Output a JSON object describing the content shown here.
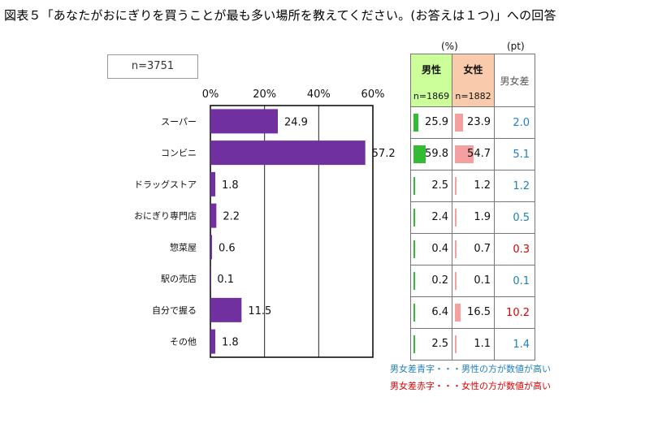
{
  "title": "図表５「あなたがおにぎりを買うことが最も多い場所を教えてください。(お答えは１つ)」への回答",
  "n_label": "n=3751",
  "chart_data": {
    "type": "bar",
    "orientation": "horizontal",
    "title": "図表５「あなたがおにぎりを買うことが最も多い場所を教えてください。(お答えは１つ)」への回答",
    "categories": [
      "スーパー",
      "コンビニ",
      "ドラッグストア",
      "おにぎり専門店",
      "惣菜屋",
      "駅の売店",
      "自分で握る",
      "その他"
    ],
    "values": [
      24.9,
      57.2,
      1.8,
      2.2,
      0.6,
      0.1,
      11.5,
      1.8
    ],
    "value_labels": [
      "24.9",
      "57.2",
      "1.8",
      "2.2",
      "0.6",
      "0.1",
      "11.5",
      "1.8"
    ],
    "xlim": [
      0,
      60
    ],
    "xticks": [
      0,
      20,
      40,
      60
    ],
    "xtick_labels": [
      "0%",
      "20%",
      "40%",
      "60%"
    ],
    "bar_color": "#7030A0",
    "grid": true
  },
  "gender_table": {
    "pct_unit": "(%)",
    "pt_unit": "(pt)",
    "male_header": "男性",
    "male_n": "n=1869",
    "female_header": "女性",
    "female_n": "n=1882",
    "diff_header": "男女差",
    "male_color": "#33BB33",
    "female_color": "#F4A0A0",
    "male_header_bg": "#CCFF99",
    "female_header_bg": "#F9CBAC",
    "blue": "#1F7FC0",
    "red": "#E00000",
    "rows": [
      {
        "male": 25.9,
        "male_label": "25.9",
        "female": 23.9,
        "female_label": "23.9",
        "diff": "2.0",
        "diff_color": "blue"
      },
      {
        "male": 59.8,
        "male_label": "59.8",
        "female": 54.7,
        "female_label": "54.7",
        "diff": "5.1",
        "diff_color": "blue"
      },
      {
        "male": 2.5,
        "male_label": "2.5",
        "female": 1.2,
        "female_label": "1.2",
        "diff": "1.2",
        "diff_color": "blue"
      },
      {
        "male": 2.4,
        "male_label": "2.4",
        "female": 1.9,
        "female_label": "1.9",
        "diff": "0.5",
        "diff_color": "blue"
      },
      {
        "male": 0.4,
        "male_label": "0.4",
        "female": 0.7,
        "female_label": "0.7",
        "diff": "0.3",
        "diff_color": "red"
      },
      {
        "male": 0.2,
        "male_label": "0.2",
        "female": 0.1,
        "female_label": "0.1",
        "diff": "0.1",
        "diff_color": "blue"
      },
      {
        "male": 6.4,
        "male_label": "6.4",
        "female": 16.5,
        "female_label": "16.5",
        "diff": "10.2",
        "diff_color": "red"
      },
      {
        "male": 2.5,
        "male_label": "2.5",
        "female": 1.1,
        "female_label": "1.1",
        "diff": "1.4",
        "diff_color": "blue"
      }
    ]
  },
  "notes": {
    "blue_note": "男女差青字・・・男性の方が数値が高い",
    "red_note": "男女差赤字・・・女性の方が数値が高い"
  }
}
